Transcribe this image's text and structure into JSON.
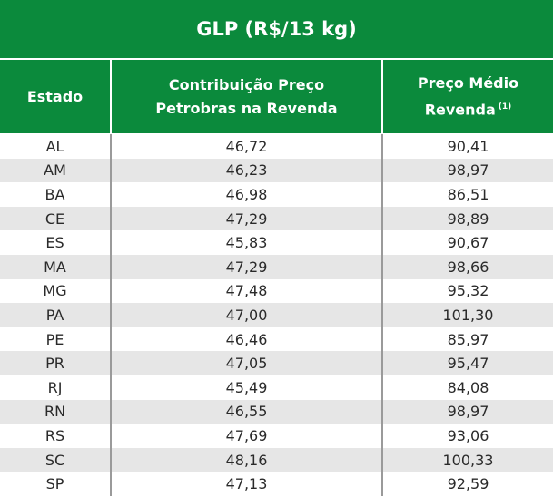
{
  "title": "GLP (R$/13 kg)",
  "headers": {
    "estado": "Estado",
    "contribuicao_line1": "Contribuição Preço",
    "contribuicao_line2": "Petrobras na Revenda",
    "preco_line1": "Preço Médio",
    "preco_line2": "Revenda",
    "preco_note": "(1)"
  },
  "colors": {
    "header_green": "#0b8a3c",
    "row_alt_gray": "#e6e6e6"
  },
  "rows": [
    {
      "estado": "AL",
      "contribuicao": "46,72",
      "preco": "90,41"
    },
    {
      "estado": "AM",
      "contribuicao": "46,23",
      "preco": "98,97"
    },
    {
      "estado": "BA",
      "contribuicao": "46,98",
      "preco": "86,51"
    },
    {
      "estado": "CE",
      "contribuicao": "47,29",
      "preco": "98,89"
    },
    {
      "estado": "ES",
      "contribuicao": "45,83",
      "preco": "90,67"
    },
    {
      "estado": "MA",
      "contribuicao": "47,29",
      "preco": "98,66"
    },
    {
      "estado": "MG",
      "contribuicao": "47,48",
      "preco": "95,32"
    },
    {
      "estado": "PA",
      "contribuicao": "47,00",
      "preco": "101,30"
    },
    {
      "estado": "PE",
      "contribuicao": "46,46",
      "preco": "85,97"
    },
    {
      "estado": "PR",
      "contribuicao": "47,05",
      "preco": "95,47"
    },
    {
      "estado": "RJ",
      "contribuicao": "45,49",
      "preco": "84,08"
    },
    {
      "estado": "RN",
      "contribuicao": "46,55",
      "preco": "98,97"
    },
    {
      "estado": "RS",
      "contribuicao": "47,69",
      "preco": "93,06"
    },
    {
      "estado": "SC",
      "contribuicao": "48,16",
      "preco": "100,33"
    },
    {
      "estado": "SP",
      "contribuicao": "47,13",
      "preco": "92,59"
    }
  ]
}
